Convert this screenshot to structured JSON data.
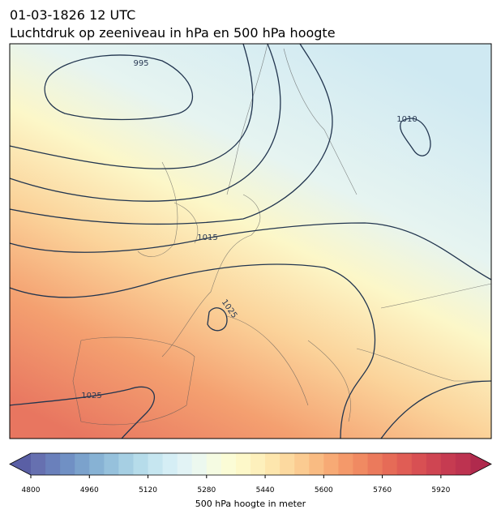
{
  "header": {
    "title": [
      "01-03-1826 12 UTC",
      "Luchtdruk op zeeniveau in hPa en 500 hPa hoogte"
    ]
  },
  "map": {
    "contour_labels": [
      "995",
      "1010",
      "1015",
      "1025",
      "1025"
    ]
  },
  "colorbar": {
    "label": "500 hPa hoogte in meter",
    "range": [
      4800,
      6000
    ],
    "ticks": [
      4800,
      4960,
      5120,
      5280,
      5440,
      5600,
      5760,
      5920
    ],
    "under_color": "#5a5fa5",
    "over_color": "#b02a4d",
    "colors": [
      "#6670b0",
      "#6a80bb",
      "#7090c4",
      "#7ba2cc",
      "#87b2d4",
      "#96c1dc",
      "#a6cfe3",
      "#b6dcea",
      "#c6e6f0",
      "#d5eef5",
      "#e2f3f5",
      "#ecf8ef",
      "#f5fbe2",
      "#fbfcd6",
      "#fdf8c9",
      "#fdf0bc",
      "#fde6ad",
      "#fcd99f",
      "#fbcb91",
      "#f9bb82",
      "#f7aa75",
      "#f4996a",
      "#f08a62",
      "#eb7a5c",
      "#e66b57",
      "#e05d55",
      "#d85053",
      "#cf4552",
      "#c63b51",
      "#bd3350"
    ]
  }
}
